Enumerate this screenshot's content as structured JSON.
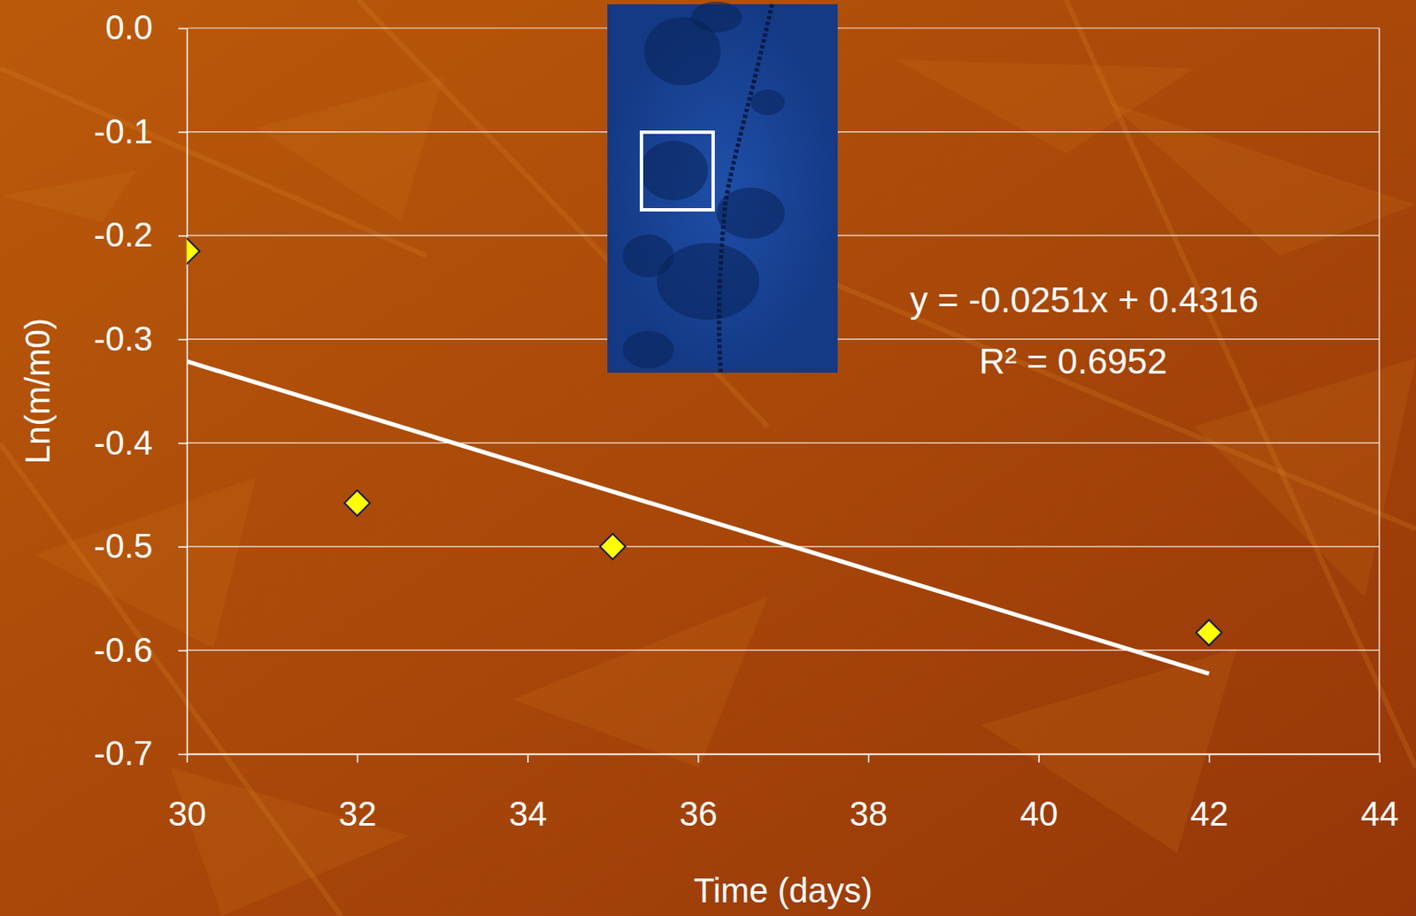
{
  "chart_data": {
    "type": "scatter",
    "x_label": "Time (days)",
    "y_label": "Ln(m/m0)",
    "annotations": [
      "y = -0.0251x + 0.4316",
      "R² = 0.6952"
    ],
    "series": [
      {
        "type": "scatter",
        "x": [
          30,
          32,
          35,
          42
        ],
        "values": [
          -0.215,
          -0.458,
          -0.5,
          -0.583
        ],
        "color": "#ffff00",
        "marker": "diamond"
      },
      {
        "type": "line",
        "x": [
          30,
          42
        ],
        "values": [
          -0.3214,
          -0.6226
        ],
        "color": "#ffffff",
        "line_style": "solid"
      }
    ],
    "xlim": [
      30,
      44
    ],
    "xticks": [
      30,
      32,
      34,
      36,
      38,
      40,
      42,
      44
    ],
    "ylim": [
      -0.7,
      0
    ],
    "yticks": [
      {
        "value": 0,
        "label": "0.0"
      },
      -0.1,
      -0.2,
      -0.3,
      -0.4,
      -0.5,
      -0.6,
      -0.7
    ],
    "grid": true
  }
}
